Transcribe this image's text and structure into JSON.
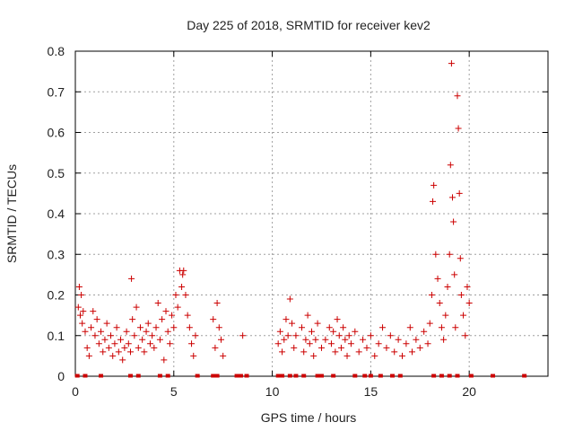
{
  "chart_data": {
    "type": "scatter",
    "title": "Day 225 of 2018, SRMTID for receiver kev2",
    "xlabel": "GPS time / hours",
    "ylabel": "SRMTID / TECUs",
    "xlim": [
      0,
      24
    ],
    "ylim": [
      0,
      0.8
    ],
    "xticks": [
      0,
      5,
      10,
      15,
      20
    ],
    "yticks": [
      0,
      0.1,
      0.2,
      0.3,
      0.4,
      0.5,
      0.6,
      0.7,
      0.8
    ],
    "xtick_labels": [
      "0",
      "5",
      "10",
      "15",
      "20"
    ],
    "ytick_labels": [
      "0",
      "0.1",
      "0.2",
      "0.3",
      "0.4",
      "0.5",
      "0.6",
      "0.7",
      "0.8"
    ],
    "grid": true,
    "marker": "+",
    "color": "#cc0000",
    "series": [
      {
        "name": "SRMTID",
        "points": [
          [
            0.15,
            0.17
          ],
          [
            0.2,
            0.22
          ],
          [
            0.25,
            0.15
          ],
          [
            0.3,
            0.2
          ],
          [
            0.35,
            0.13
          ],
          [
            0.4,
            0.16
          ],
          [
            0.5,
            0.11
          ],
          [
            0.6,
            0.07
          ],
          [
            0.7,
            0.05
          ],
          [
            0.8,
            0.12
          ],
          [
            0.9,
            0.16
          ],
          [
            1.0,
            0.1
          ],
          [
            1.1,
            0.14
          ],
          [
            1.2,
            0.08
          ],
          [
            1.3,
            0.11
          ],
          [
            1.4,
            0.06
          ],
          [
            1.5,
            0.09
          ],
          [
            1.6,
            0.13
          ],
          [
            1.7,
            0.07
          ],
          [
            1.8,
            0.1
          ],
          [
            1.9,
            0.05
          ],
          [
            2.0,
            0.08
          ],
          [
            2.1,
            0.12
          ],
          [
            2.2,
            0.06
          ],
          [
            2.3,
            0.09
          ],
          [
            2.4,
            0.04
          ],
          [
            2.5,
            0.07
          ],
          [
            2.6,
            0.11
          ],
          [
            2.7,
            0.08
          ],
          [
            2.8,
            0.06
          ],
          [
            2.85,
            0.24
          ],
          [
            2.9,
            0.14
          ],
          [
            3.0,
            0.1
          ],
          [
            3.1,
            0.17
          ],
          [
            3.2,
            0.07
          ],
          [
            3.3,
            0.12
          ],
          [
            3.4,
            0.09
          ],
          [
            3.5,
            0.06
          ],
          [
            3.6,
            0.11
          ],
          [
            3.7,
            0.13
          ],
          [
            3.8,
            0.08
          ],
          [
            3.9,
            0.1
          ],
          [
            4.0,
            0.07
          ],
          [
            4.1,
            0.12
          ],
          [
            4.2,
            0.18
          ],
          [
            4.3,
            0.09
          ],
          [
            4.4,
            0.14
          ],
          [
            4.5,
            0.04
          ],
          [
            4.6,
            0.16
          ],
          [
            4.7,
            0.11
          ],
          [
            4.8,
            0.08
          ],
          [
            4.9,
            0.15
          ],
          [
            5.0,
            0.12
          ],
          [
            5.1,
            0.2
          ],
          [
            5.2,
            0.17
          ],
          [
            5.3,
            0.26
          ],
          [
            5.4,
            0.22
          ],
          [
            5.45,
            0.25
          ],
          [
            5.5,
            0.26
          ],
          [
            5.6,
            0.2
          ],
          [
            5.7,
            0.15
          ],
          [
            5.8,
            0.12
          ],
          [
            5.9,
            0.08
          ],
          [
            6.0,
            0.05
          ],
          [
            6.1,
            0.1
          ],
          [
            7.0,
            0.14
          ],
          [
            7.1,
            0.07
          ],
          [
            7.2,
            0.18
          ],
          [
            7.3,
            0.12
          ],
          [
            7.4,
            0.09
          ],
          [
            7.5,
            0.05
          ],
          [
            8.5,
            0.1
          ],
          [
            10.3,
            0.08
          ],
          [
            10.4,
            0.11
          ],
          [
            10.5,
            0.06
          ],
          [
            10.6,
            0.09
          ],
          [
            10.7,
            0.14
          ],
          [
            10.8,
            0.1
          ],
          [
            10.9,
            0.19
          ],
          [
            11.0,
            0.13
          ],
          [
            11.1,
            0.07
          ],
          [
            11.2,
            0.1
          ],
          [
            11.5,
            0.12
          ],
          [
            11.6,
            0.06
          ],
          [
            11.7,
            0.09
          ],
          [
            11.8,
            0.15
          ],
          [
            11.9,
            0.08
          ],
          [
            12.0,
            0.11
          ],
          [
            12.1,
            0.05
          ],
          [
            12.2,
            0.09
          ],
          [
            12.3,
            0.13
          ],
          [
            12.5,
            0.07
          ],
          [
            12.7,
            0.09
          ],
          [
            12.9,
            0.12
          ],
          [
            13.0,
            0.08
          ],
          [
            13.1,
            0.11
          ],
          [
            13.2,
            0.06
          ],
          [
            13.3,
            0.14
          ],
          [
            13.4,
            0.1
          ],
          [
            13.5,
            0.07
          ],
          [
            13.6,
            0.12
          ],
          [
            13.7,
            0.09
          ],
          [
            13.8,
            0.05
          ],
          [
            13.9,
            0.1
          ],
          [
            14.0,
            0.08
          ],
          [
            14.2,
            0.11
          ],
          [
            14.4,
            0.06
          ],
          [
            14.6,
            0.09
          ],
          [
            14.8,
            0.07
          ],
          [
            15.0,
            0.1
          ],
          [
            15.2,
            0.05
          ],
          [
            15.4,
            0.08
          ],
          [
            15.6,
            0.12
          ],
          [
            15.8,
            0.07
          ],
          [
            16.0,
            0.1
          ],
          [
            16.2,
            0.06
          ],
          [
            16.4,
            0.09
          ],
          [
            16.6,
            0.05
          ],
          [
            16.8,
            0.08
          ],
          [
            17.0,
            0.12
          ],
          [
            17.1,
            0.06
          ],
          [
            17.3,
            0.09
          ],
          [
            17.5,
            0.07
          ],
          [
            17.7,
            0.11
          ],
          [
            17.9,
            0.08
          ],
          [
            18.0,
            0.13
          ],
          [
            18.1,
            0.2
          ],
          [
            18.15,
            0.43
          ],
          [
            18.2,
            0.47
          ],
          [
            18.3,
            0.3
          ],
          [
            18.4,
            0.24
          ],
          [
            18.5,
            0.18
          ],
          [
            18.6,
            0.12
          ],
          [
            18.7,
            0.09
          ],
          [
            18.8,
            0.15
          ],
          [
            18.9,
            0.22
          ],
          [
            19.0,
            0.3
          ],
          [
            19.05,
            0.52
          ],
          [
            19.1,
            0.77
          ],
          [
            19.15,
            0.44
          ],
          [
            19.2,
            0.38
          ],
          [
            19.25,
            0.25
          ],
          [
            19.3,
            0.12
          ],
          [
            19.4,
            0.69
          ],
          [
            19.45,
            0.61
          ],
          [
            19.5,
            0.45
          ],
          [
            19.55,
            0.29
          ],
          [
            19.6,
            0.2
          ],
          [
            19.7,
            0.15
          ],
          [
            19.8,
            0.1
          ],
          [
            19.9,
            0.22
          ],
          [
            20.0,
            0.18
          ]
        ]
      }
    ],
    "baseline_markers_x": [
      0.1,
      0.5,
      1.3,
      2.8,
      3.2,
      4.3,
      4.7,
      6.2,
      7.0,
      7.2,
      8.2,
      8.4,
      8.7,
      10.3,
      10.5,
      10.9,
      11.2,
      11.6,
      12.3,
      12.5,
      13.1,
      14.2,
      14.7,
      15.0,
      15.5,
      16.1,
      16.5,
      18.2,
      18.6,
      19.0,
      19.4,
      20.1,
      21.2,
      22.8
    ]
  }
}
